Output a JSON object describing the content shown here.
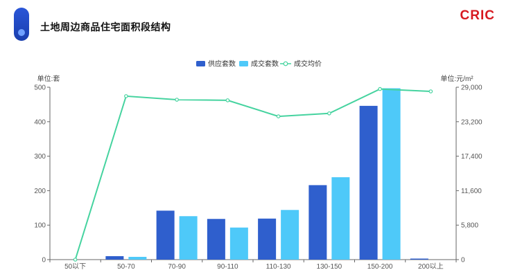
{
  "header": {
    "title": "土地周边商品住宅面积段结构",
    "logo": "CRIC"
  },
  "colors": {
    "supply": "#2f5fcd",
    "deal": "#4ec9f9",
    "price": "#45d39f",
    "logo": "#d71920"
  },
  "chart_data": {
    "type": "bar",
    "categories": [
      "50以下",
      "50-70",
      "70-90",
      "90-110",
      "110-130",
      "130-150",
      "150-200",
      "200以上"
    ],
    "series": [
      {
        "name": "供应套数",
        "kind": "bar",
        "axis": "left",
        "values": [
          0,
          10,
          142,
          118,
          119,
          216,
          446,
          3
        ]
      },
      {
        "name": "成交套数",
        "kind": "bar",
        "axis": "left",
        "values": [
          0,
          8,
          126,
          93,
          144,
          239,
          497,
          0
        ]
      },
      {
        "name": "成交均价",
        "kind": "line",
        "axis": "right",
        "values": [
          0,
          27500,
          26900,
          26800,
          24100,
          24600,
          28700,
          28300
        ]
      }
    ],
    "ylabel_left": "单位:套",
    "ylabel_right": "单位:元/m²",
    "ylim_left": [
      0,
      500
    ],
    "ylim_right": [
      0,
      29000
    ],
    "yticks_left": [
      "0",
      "100",
      "200",
      "300",
      "400",
      "500"
    ],
    "yticks_right": [
      "0",
      "5,800",
      "11,600",
      "17,400",
      "23,200",
      "29,000"
    ],
    "legend_position": "top-center"
  }
}
